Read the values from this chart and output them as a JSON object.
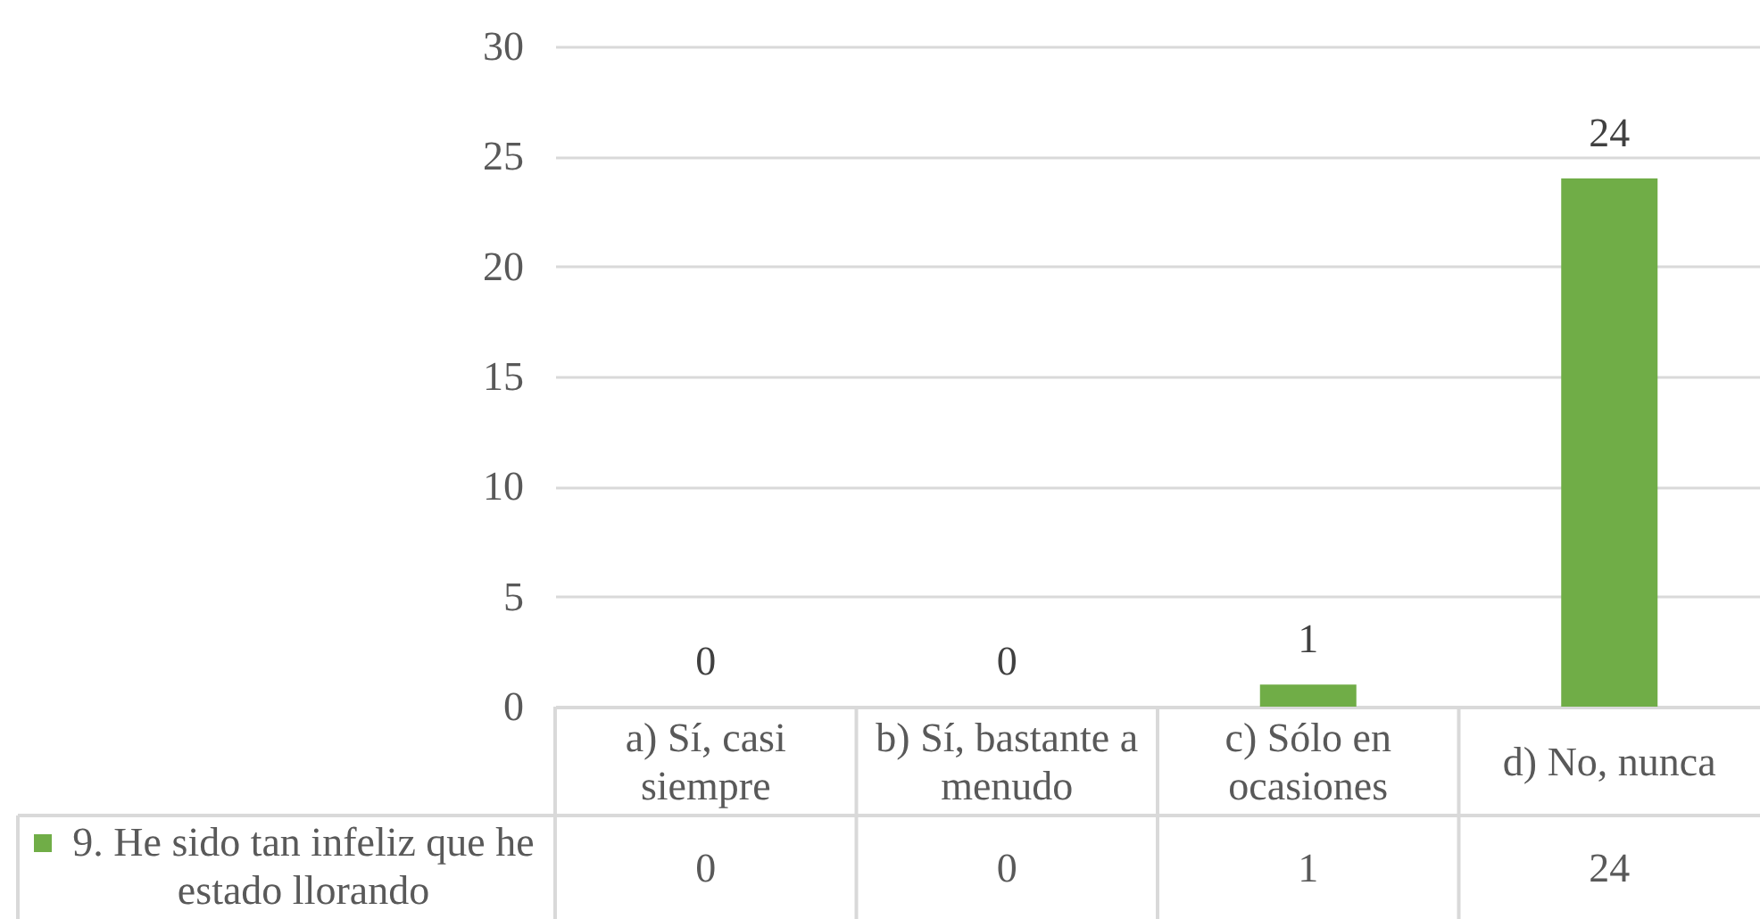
{
  "chart_data": {
    "type": "bar",
    "categories": [
      "a) Sí, casi siempre",
      "b) Sí, bastante a menudo",
      "c) Sólo en ocasiones",
      "d) No, nunca"
    ],
    "series": [
      {
        "name": "9. He sido tan infeliz que he estado llorando",
        "color": "#70ad47",
        "values": [
          0,
          0,
          1,
          24
        ],
        "value_labels": [
          "0",
          "0",
          "1",
          "24"
        ]
      }
    ],
    "ylim": [
      0,
      30
    ],
    "yticks": [
      0,
      5,
      10,
      15,
      20,
      25,
      30
    ],
    "grid": "y",
    "legend": "bottom",
    "data_labels": true
  }
}
